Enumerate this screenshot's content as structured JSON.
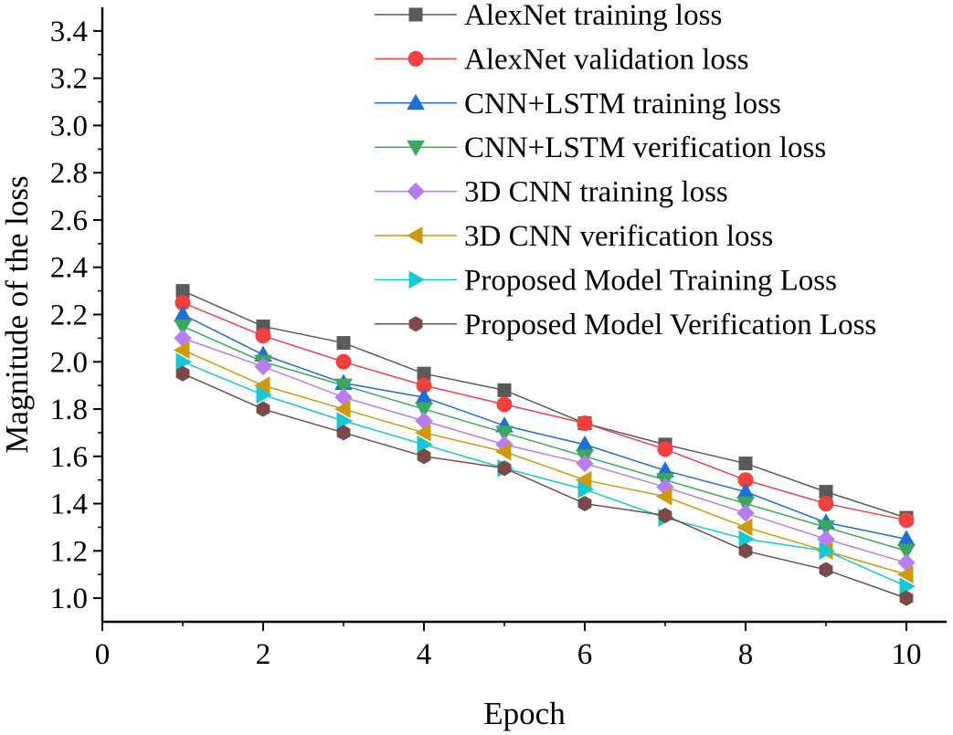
{
  "chart_data": {
    "type": "line",
    "xlabel": "Epoch",
    "ylabel": "Magnitude of the loss",
    "xlim": [
      0,
      10.5
    ],
    "ylim": [
      0.9,
      3.5
    ],
    "x_ticks": [
      "0",
      "2",
      "4",
      "6",
      "8",
      "10"
    ],
    "y_ticks": [
      "1.0",
      "1.2",
      "1.4",
      "1.6",
      "1.8",
      "2.0",
      "2.2",
      "2.4",
      "2.6",
      "2.8",
      "3.0",
      "3.2",
      "3.4"
    ],
    "legend_position": "top-right",
    "grid": false,
    "x": [
      1,
      2,
      3,
      4,
      5,
      6,
      7,
      8,
      9,
      10
    ],
    "series": [
      {
        "name": "AlexNet training loss",
        "color": "#5a5a5a",
        "marker": "square",
        "values": [
          2.3,
          2.15,
          2.08,
          1.95,
          1.88,
          1.74,
          1.65,
          1.57,
          1.45,
          1.34
        ]
      },
      {
        "name": "AlexNet validation loss",
        "color": "#f04040",
        "marker": "circle",
        "values": [
          2.25,
          2.11,
          2.0,
          1.9,
          1.82,
          1.74,
          1.63,
          1.5,
          1.4,
          1.33
        ]
      },
      {
        "name": "CNN+LSTM training loss",
        "color": "#1f6fd6",
        "marker": "triangle-up",
        "values": [
          2.2,
          2.03,
          1.91,
          1.85,
          1.73,
          1.65,
          1.54,
          1.45,
          1.32,
          1.25
        ]
      },
      {
        "name": "CNN+LSTM verification loss",
        "color": "#3aa860",
        "marker": "triangle-down",
        "values": [
          2.15,
          2.0,
          1.9,
          1.8,
          1.7,
          1.6,
          1.5,
          1.4,
          1.3,
          1.2
        ]
      },
      {
        "name": "3D CNN training loss",
        "color": "#b77ef0",
        "marker": "diamond",
        "values": [
          2.1,
          1.98,
          1.85,
          1.75,
          1.65,
          1.57,
          1.47,
          1.36,
          1.25,
          1.15
        ]
      },
      {
        "name": "3D CNN verification loss",
        "color": "#cc9a0a",
        "marker": "triangle-left",
        "values": [
          2.05,
          1.9,
          1.8,
          1.7,
          1.62,
          1.5,
          1.43,
          1.3,
          1.2,
          1.1
        ]
      },
      {
        "name": "Proposed Model Training Loss",
        "color": "#18c8d0",
        "marker": "triangle-right",
        "values": [
          2.0,
          1.86,
          1.75,
          1.65,
          1.55,
          1.46,
          1.34,
          1.25,
          1.2,
          1.05
        ]
      },
      {
        "name": "Proposed Model Verification Loss",
        "color": "#7a4a4a",
        "marker": "hexagon",
        "values": [
          1.95,
          1.8,
          1.7,
          1.6,
          1.55,
          1.4,
          1.35,
          1.2,
          1.12,
          1.0
        ]
      }
    ]
  }
}
